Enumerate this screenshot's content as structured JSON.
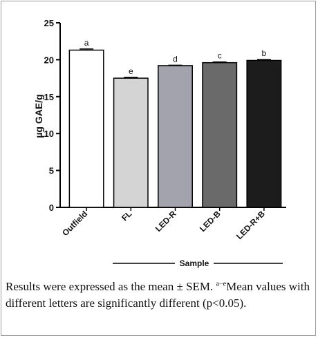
{
  "chart_data": {
    "type": "bar",
    "title": "",
    "xlabel": "Sample",
    "ylabel": "µg GAE/g",
    "ylim": [
      0,
      25
    ],
    "yticks": [
      "0",
      "5",
      "10",
      "15",
      "20",
      "25"
    ],
    "categories": [
      "Outfield",
      "FL",
      "LED-R",
      "LED-B",
      "LED-R+B"
    ],
    "values": [
      21.3,
      17.5,
      19.2,
      19.6,
      19.9
    ],
    "errors": [
      0.15,
      0.12,
      0.05,
      0.1,
      0.12
    ],
    "letters": [
      "a",
      "e",
      "d",
      "c",
      "b"
    ],
    "colors": [
      "#ffffff",
      "#d4d4d4",
      "#a3a3ad",
      "#6a6a6a",
      "#1c1c1c"
    ],
    "grid": false
  },
  "caption": {
    "text_before": "Results were expressed as the mean ± SEM. ",
    "superscript": "a−e",
    "text_after": "Mean values with different letters are significantly different (p<0.05)."
  }
}
